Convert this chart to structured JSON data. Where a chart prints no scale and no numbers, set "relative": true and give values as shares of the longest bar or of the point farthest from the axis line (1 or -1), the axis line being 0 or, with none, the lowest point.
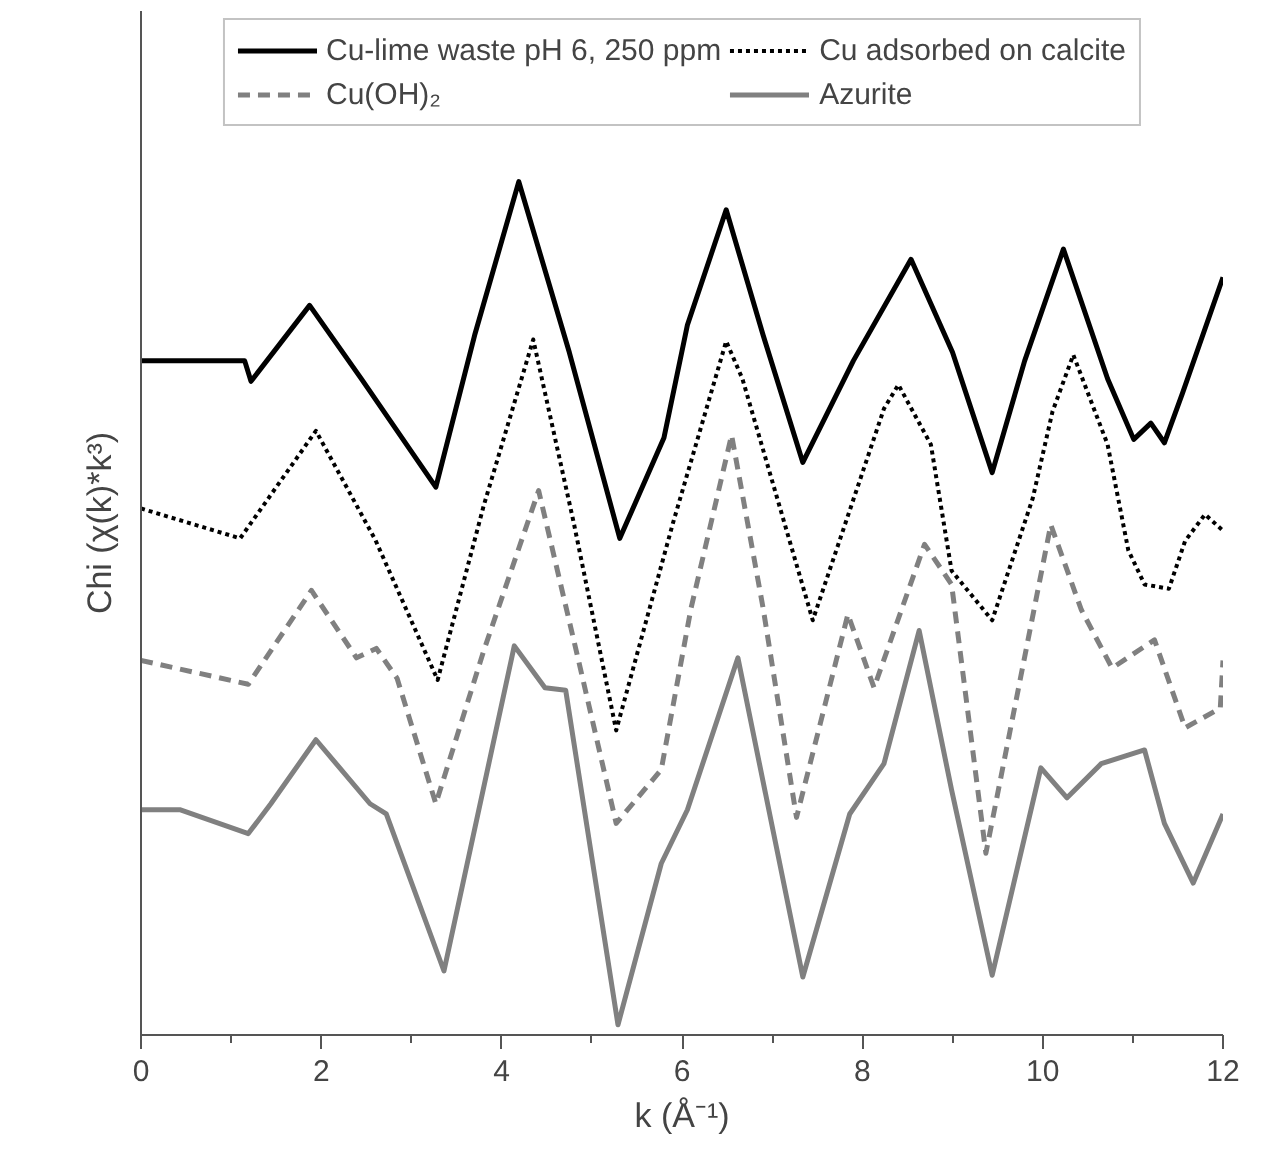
{
  "chart_data": {
    "type": "line",
    "relative": true,
    "xlabel": "k (Å⁻¹)",
    "ylabel": "Chi (χ(k)*k³)",
    "xlim": [
      0,
      12
    ],
    "xticks": [
      0,
      {
        "value": 1,
        "label": null
      },
      2,
      {
        "value": 3,
        "label": null
      },
      4,
      {
        "value": 5,
        "label": null
      },
      6,
      {
        "value": 7,
        "label": null
      },
      8,
      {
        "value": 9,
        "label": null
      },
      10,
      {
        "value": 11,
        "label": null
      },
      12
    ],
    "grid": false,
    "legend": "top",
    "tick_labels": "x",
    "series": [
      {
        "name": "Cu-lime waste pH 6, 250 ppm",
        "color": "#000000",
        "line_style": "solid",
        "x": [
          0,
          1.15,
          1.22,
          1.87,
          2.45,
          3.27,
          3.7,
          4.19,
          4.75,
          5.31,
          5.8,
          6.06,
          6.49,
          6.9,
          7.34,
          7.9,
          8.54,
          9.0,
          9.44,
          9.8,
          10.23,
          10.72,
          11.01,
          11.2,
          11.35,
          11.55,
          12
        ],
        "values": [
          0.79,
          0.79,
          0.766,
          0.855,
          0.768,
          0.642,
          0.82,
          1.0,
          0.8,
          0.582,
          0.7,
          0.832,
          0.967,
          0.82,
          0.671,
          0.79,
          0.909,
          0.8,
          0.659,
          0.79,
          0.921,
          0.769,
          0.698,
          0.717,
          0.694,
          0.752,
          0.888
        ]
      },
      {
        "name": "Cu adsorbed on calcite",
        "color": "#000000",
        "line_style": "dotted",
        "x": [
          0,
          1.1,
          1.94,
          2.6,
          3.29,
          3.8,
          4.35,
          4.8,
          5.27,
          5.9,
          6.49,
          6.67,
          7.45,
          8.24,
          8.4,
          8.76,
          8.99,
          9.44,
          9.89,
          10.11,
          10.34,
          10.72,
          10.95,
          11.13,
          11.4,
          11.58,
          11.8,
          12
        ],
        "values": [
          0.617,
          0.582,
          0.708,
          0.58,
          0.416,
          0.62,
          0.815,
          0.6,
          0.357,
          0.6,
          0.813,
          0.769,
          0.486,
          0.734,
          0.762,
          0.692,
          0.544,
          0.486,
          0.629,
          0.731,
          0.797,
          0.692,
          0.568,
          0.528,
          0.523,
          0.579,
          0.61,
          0.591
        ]
      },
      {
        "name": "Cu(OH)₂",
        "color": "#808080",
        "line_style": "dashed",
        "x": [
          0,
          1.19,
          1.89,
          2.39,
          2.61,
          2.84,
          3.27,
          3.8,
          4.41,
          4.85,
          5.27,
          5.77,
          6.1,
          6.55,
          6.9,
          7.27,
          7.84,
          8.13,
          8.69,
          8.99,
          9.37,
          10.09,
          10.43,
          10.77,
          11.24,
          11.58,
          11.97,
          12
        ],
        "values": [
          0.439,
          0.411,
          0.521,
          0.442,
          0.453,
          0.418,
          0.271,
          0.45,
          0.638,
          0.44,
          0.248,
          0.311,
          0.5,
          0.703,
          0.5,
          0.255,
          0.493,
          0.407,
          0.575,
          0.528,
          0.213,
          0.598,
          0.498,
          0.43,
          0.463,
          0.36,
          0.383,
          0.439
        ]
      },
      {
        "name": "Azurite",
        "color": "#808080",
        "line_style": "solid",
        "x": [
          0,
          0.43,
          1.19,
          1.44,
          1.94,
          2.54,
          2.72,
          3.36,
          4.14,
          4.48,
          4.71,
          5.29,
          5.77,
          6.06,
          6.62,
          7.34,
          7.86,
          8.24,
          8.63,
          8.99,
          9.44,
          9.98,
          10.27,
          10.65,
          11.13,
          11.35,
          11.67,
          12
        ],
        "values": [
          0.264,
          0.264,
          0.236,
          0.271,
          0.346,
          0.271,
          0.259,
          0.075,
          0.456,
          0.407,
          0.404,
          0.012,
          0.201,
          0.264,
          0.442,
          0.068,
          0.259,
          0.318,
          0.474,
          0.287,
          0.07,
          0.313,
          0.278,
          0.318,
          0.334,
          0.248,
          0.178,
          0.259
        ]
      }
    ]
  }
}
